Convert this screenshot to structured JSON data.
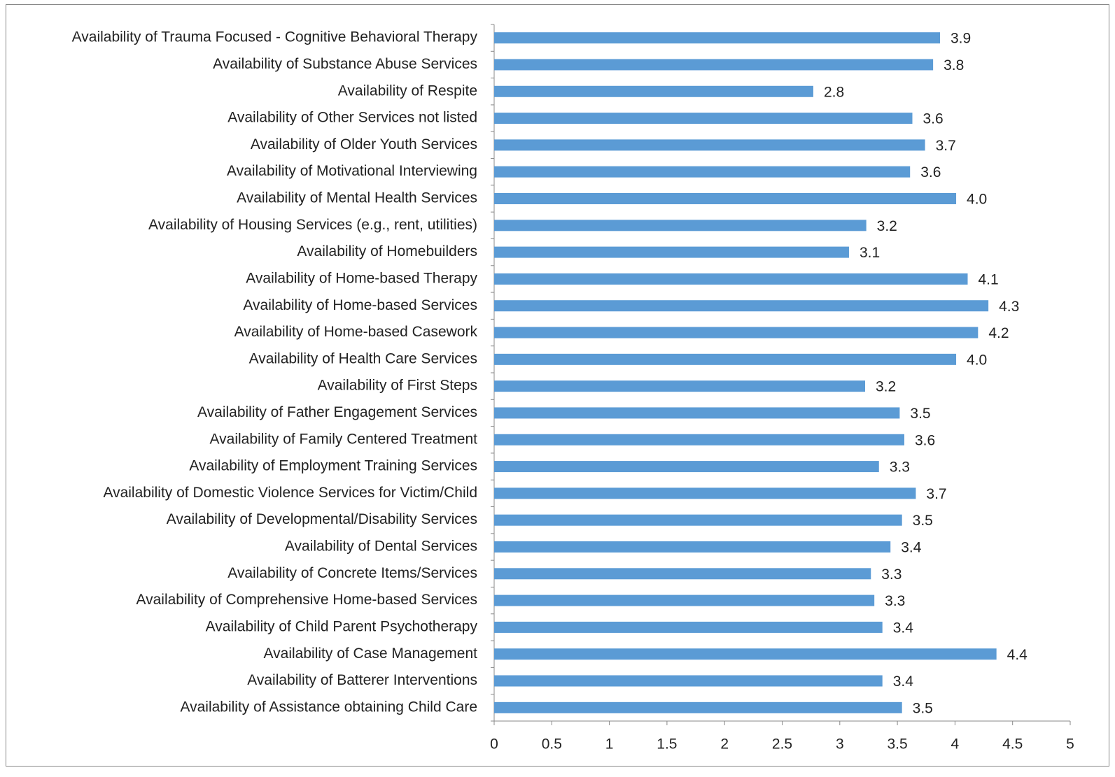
{
  "chart_data": {
    "type": "bar",
    "orientation": "horizontal",
    "categories": [
      "Availability of Trauma Focused - Cognitive Behavioral Therapy",
      "Availability of Substance Abuse Services",
      "Availability of Respite",
      "Availability of Other Services not listed",
      "Availability of Older Youth Services",
      "Availability of Motivational Interviewing",
      "Availability of Mental Health Services",
      "Availability of Housing Services (e.g., rent, utilities)",
      "Availability of Homebuilders",
      "Availability of Home-based Therapy",
      "Availability of Home-based Services",
      "Availability of Home-based Casework",
      "Availability of Health Care Services",
      "Availability of First Steps",
      "Availability of Father Engagement Services",
      "Availability of Family Centered Treatment",
      "Availability of Employment Training Services",
      "Availability of Domestic Violence Services for Victim/Child",
      "Availability of Developmental/Disability Services",
      "Availability of Dental Services",
      "Availability of Concrete Items/Services",
      "Availability of Comprehensive Home-based Services",
      "Availability of Child Parent Psychotherapy",
      "Availability of Case Management",
      "Availability of Batterer Interventions",
      "Availability of Assistance obtaining Child Care"
    ],
    "values": [
      3.87,
      3.81,
      2.77,
      3.63,
      3.74,
      3.61,
      4.01,
      3.23,
      3.08,
      4.11,
      4.29,
      4.2,
      4.01,
      3.22,
      3.52,
      3.56,
      3.34,
      3.66,
      3.54,
      3.44,
      3.27,
      3.3,
      3.37,
      4.36,
      3.37,
      3.54
    ],
    "value_labels": [
      "3.9",
      "3.8",
      "2.8",
      "3.6",
      "3.7",
      "3.6",
      "4.0",
      "3.2",
      "3.1",
      "4.1",
      "4.3",
      "4.2",
      "4.0",
      "3.2",
      "3.5",
      "3.6",
      "3.3",
      "3.7",
      "3.5",
      "3.4",
      "3.3",
      "3.3",
      "3.4",
      "4.4",
      "3.4",
      "3.5"
    ],
    "color": "#5b9bd5",
    "xlim": [
      0,
      5
    ],
    "xticks": [
      0,
      0.5,
      1,
      1.5,
      2,
      2.5,
      3,
      3.5,
      4,
      4.5,
      5
    ],
    "grid": false
  }
}
